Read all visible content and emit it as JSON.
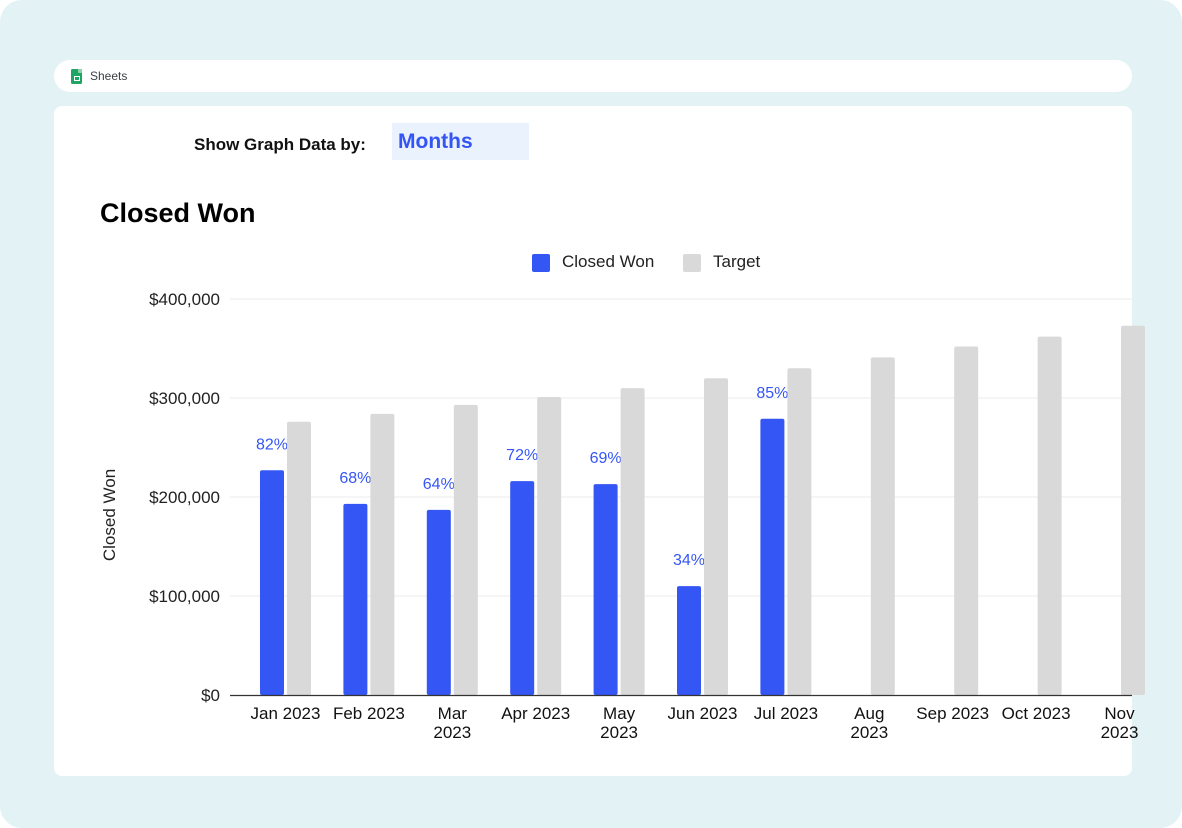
{
  "app": {
    "name": "Sheets"
  },
  "control": {
    "label": "Show Graph Data by:",
    "value": "Months"
  },
  "chart_data": {
    "type": "bar",
    "title": "Closed Won",
    "ylabel": "Closed Won",
    "xlabel": "",
    "ylim": [
      0,
      400000
    ],
    "yticks": [
      0,
      100000,
      200000,
      300000,
      400000
    ],
    "ytick_labels": [
      "$0",
      "$100,000",
      "$200,000",
      "$300,000",
      "$400,000"
    ],
    "categories": [
      "Jan 2023",
      "Feb 2023",
      "Mar 2023",
      "Apr 2023",
      "May 2023",
      "Jun 2023",
      "Jul 2023",
      "Aug 2023",
      "Sep 2023",
      "Oct 2023",
      "Nov 2023"
    ],
    "category_lines": [
      [
        "Jan 2023"
      ],
      [
        "Feb 2023"
      ],
      [
        "Mar",
        "2023"
      ],
      [
        "Apr 2023"
      ],
      [
        "May",
        "2023"
      ],
      [
        "Jun 2023"
      ],
      [
        "Jul 2023"
      ],
      [
        "Aug",
        "2023"
      ],
      [
        "Sep 2023"
      ],
      [
        "Oct 2023"
      ],
      [
        "Nov",
        "2023"
      ]
    ],
    "legend_position": "top",
    "grid": true,
    "series": [
      {
        "name": "Closed Won",
        "color": "#3456f5",
        "values": [
          227000,
          193000,
          187000,
          216000,
          213000,
          110000,
          279000,
          null,
          null,
          null,
          null
        ],
        "data_labels": [
          "82%",
          "68%",
          "64%",
          "72%",
          "69%",
          "34%",
          "85%",
          null,
          null,
          null,
          null
        ]
      },
      {
        "name": "Target",
        "color": "#d9d9d9",
        "values": [
          276000,
          284000,
          293000,
          301000,
          310000,
          320000,
          330000,
          341000,
          352000,
          362000,
          373000
        ]
      }
    ]
  }
}
